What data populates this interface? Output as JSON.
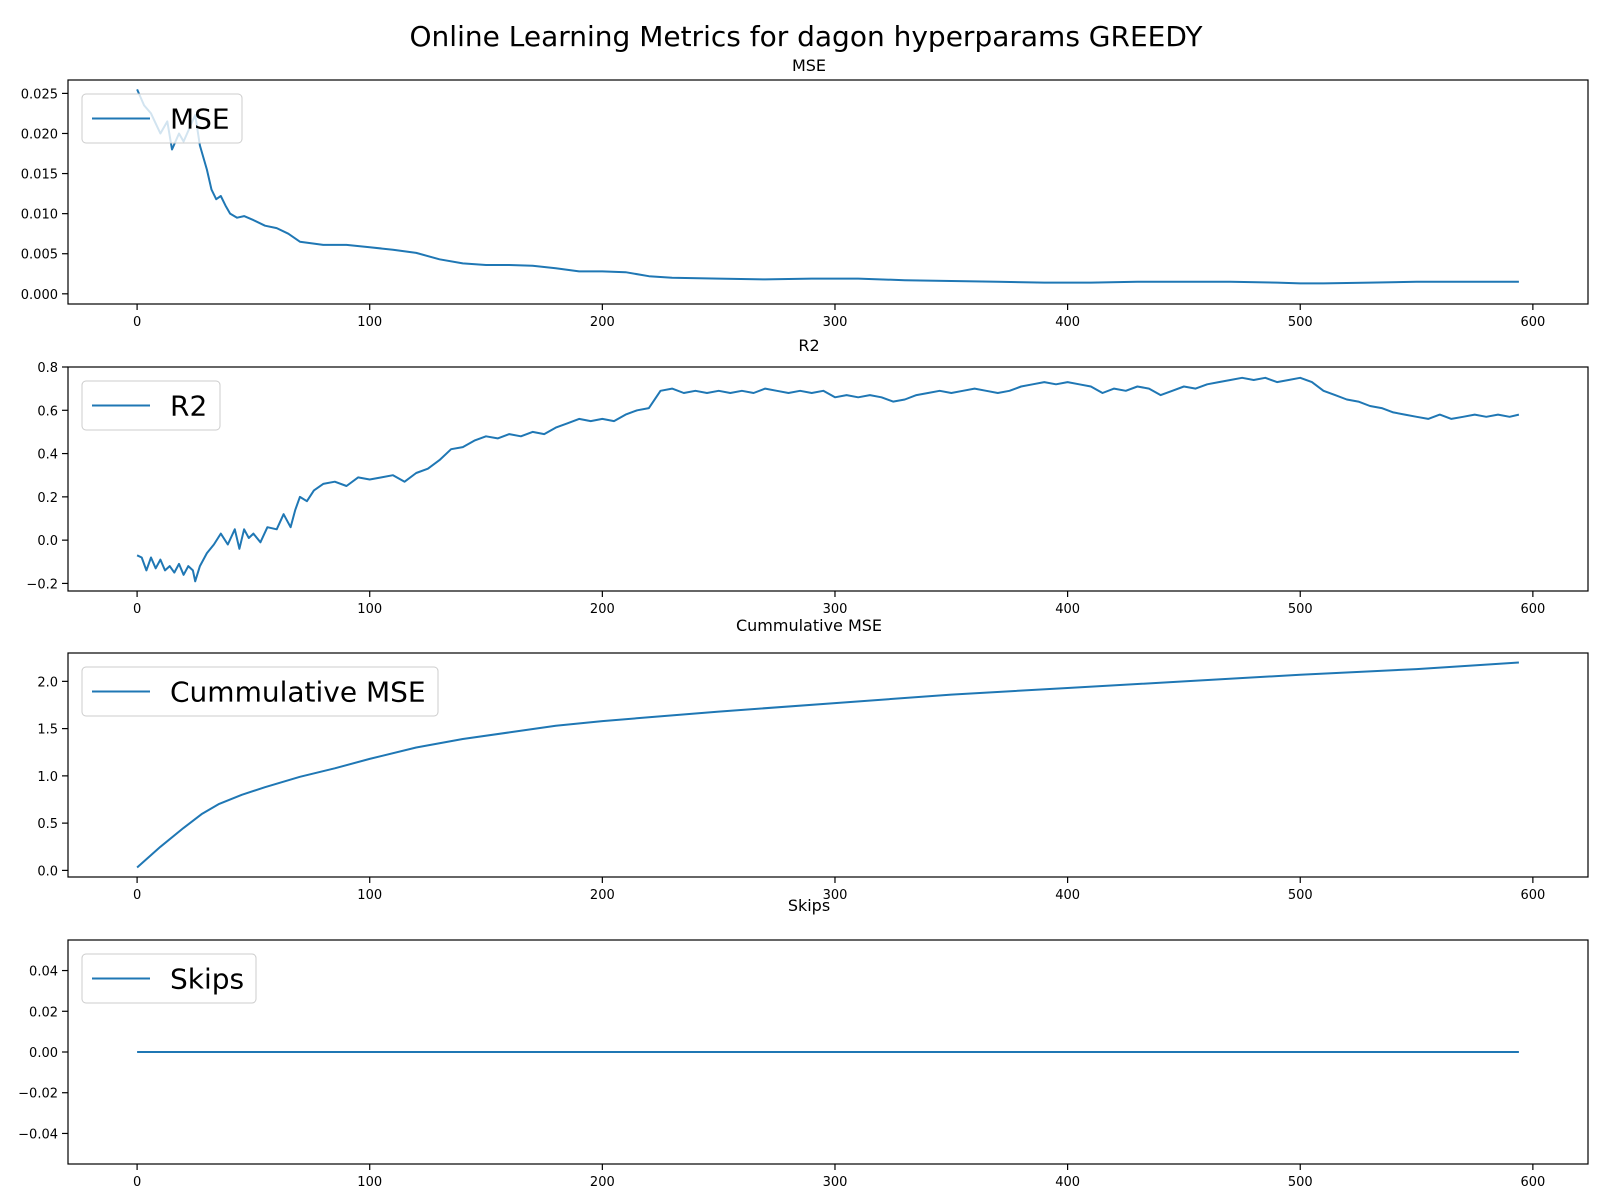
{
  "title": "Online Learning Metrics for dagon hyperparams GREEDY",
  "colors": {
    "line": "#1f77b4",
    "axes": "#000000",
    "legend_border": "#cccccc"
  },
  "chart_data": [
    {
      "type": "line",
      "title": "MSE",
      "xlim": [
        -29.7,
        623.7
      ],
      "ylim": [
        -0.00127,
        0.02667
      ],
      "xticks": [
        0,
        100,
        200,
        300,
        400,
        500,
        600
      ],
      "yticks": [
        0.0,
        0.005,
        0.01,
        0.015,
        0.02,
        0.025
      ],
      "ytick_labels": [
        "0.000",
        "0.005",
        "0.010",
        "0.015",
        "0.020",
        "0.025"
      ],
      "legend": "top-left",
      "series": [
        {
          "name": "MSE",
          "x": [
            0,
            3,
            6,
            10,
            13,
            15,
            18,
            20,
            23,
            25,
            27,
            30,
            32,
            34,
            36,
            38,
            40,
            43,
            46,
            50,
            55,
            60,
            65,
            70,
            80,
            90,
            100,
            110,
            120,
            130,
            140,
            150,
            160,
            170,
            180,
            190,
            200,
            210,
            220,
            230,
            250,
            270,
            290,
            310,
            330,
            350,
            370,
            390,
            410,
            430,
            450,
            470,
            490,
            500,
            510,
            530,
            550,
            570,
            594
          ],
          "y": [
            0.0255,
            0.0235,
            0.0225,
            0.02,
            0.0215,
            0.018,
            0.02,
            0.019,
            0.021,
            0.0223,
            0.0185,
            0.0155,
            0.013,
            0.0118,
            0.0122,
            0.011,
            0.01,
            0.0095,
            0.0097,
            0.0092,
            0.0085,
            0.0082,
            0.0075,
            0.0065,
            0.0061,
            0.0061,
            0.0058,
            0.0055,
            0.0051,
            0.0043,
            0.0038,
            0.0036,
            0.0036,
            0.0035,
            0.0032,
            0.0028,
            0.0028,
            0.0027,
            0.0022,
            0.002,
            0.0019,
            0.0018,
            0.0019,
            0.0019,
            0.0017,
            0.0016,
            0.0015,
            0.0014,
            0.0014,
            0.0015,
            0.0015,
            0.0015,
            0.0014,
            0.0013,
            0.0013,
            0.0014,
            0.0015,
            0.0015,
            0.0015
          ]
        }
      ]
    },
    {
      "type": "line",
      "title": "R2",
      "xlim": [
        -29.7,
        623.7
      ],
      "ylim": [
        -0.235,
        0.8
      ],
      "xticks": [
        0,
        100,
        200,
        300,
        400,
        500,
        600
      ],
      "yticks": [
        -0.2,
        0.0,
        0.2,
        0.4,
        0.6,
        0.8
      ],
      "ytick_labels": [
        "−0.2",
        "0.0",
        "0.2",
        "0.4",
        "0.6",
        "0.8"
      ],
      "legend": "top-left",
      "series": [
        {
          "name": "R2",
          "x": [
            0,
            2,
            4,
            6,
            8,
            10,
            12,
            14,
            16,
            18,
            20,
            22,
            24,
            25,
            27,
            30,
            33,
            36,
            39,
            42,
            44,
            46,
            48,
            50,
            53,
            56,
            60,
            63,
            66,
            68,
            70,
            73,
            76,
            80,
            85,
            90,
            95,
            100,
            105,
            110,
            115,
            120,
            125,
            130,
            135,
            140,
            145,
            150,
            155,
            160,
            165,
            170,
            175,
            180,
            185,
            190,
            195,
            200,
            205,
            210,
            215,
            220,
            225,
            230,
            235,
            240,
            245,
            250,
            255,
            260,
            265,
            270,
            275,
            280,
            285,
            290,
            295,
            300,
            305,
            310,
            315,
            320,
            325,
            330,
            335,
            340,
            345,
            350,
            355,
            360,
            365,
            370,
            375,
            380,
            385,
            390,
            395,
            400,
            405,
            410,
            415,
            420,
            425,
            430,
            435,
            440,
            445,
            450,
            455,
            460,
            465,
            470,
            475,
            480,
            485,
            490,
            495,
            500,
            505,
            510,
            515,
            520,
            525,
            530,
            535,
            540,
            545,
            550,
            555,
            560,
            565,
            570,
            575,
            580,
            585,
            590,
            594
          ],
          "y": [
            -0.07,
            -0.08,
            -0.14,
            -0.08,
            -0.13,
            -0.09,
            -0.14,
            -0.12,
            -0.15,
            -0.11,
            -0.16,
            -0.12,
            -0.14,
            -0.19,
            -0.12,
            -0.06,
            -0.02,
            0.03,
            -0.02,
            0.05,
            -0.04,
            0.05,
            0.01,
            0.03,
            -0.01,
            0.06,
            0.05,
            0.12,
            0.06,
            0.14,
            0.2,
            0.18,
            0.23,
            0.26,
            0.27,
            0.25,
            0.29,
            0.28,
            0.29,
            0.3,
            0.27,
            0.31,
            0.33,
            0.37,
            0.42,
            0.43,
            0.46,
            0.48,
            0.47,
            0.49,
            0.48,
            0.5,
            0.49,
            0.52,
            0.54,
            0.56,
            0.55,
            0.56,
            0.55,
            0.58,
            0.6,
            0.61,
            0.69,
            0.7,
            0.68,
            0.69,
            0.68,
            0.69,
            0.68,
            0.69,
            0.68,
            0.7,
            0.69,
            0.68,
            0.69,
            0.68,
            0.69,
            0.66,
            0.67,
            0.66,
            0.67,
            0.66,
            0.64,
            0.65,
            0.67,
            0.68,
            0.69,
            0.68,
            0.69,
            0.7,
            0.69,
            0.68,
            0.69,
            0.71,
            0.72,
            0.73,
            0.72,
            0.73,
            0.72,
            0.71,
            0.68,
            0.7,
            0.69,
            0.71,
            0.7,
            0.67,
            0.69,
            0.71,
            0.7,
            0.72,
            0.73,
            0.74,
            0.75,
            0.74,
            0.75,
            0.73,
            0.74,
            0.75,
            0.73,
            0.69,
            0.67,
            0.65,
            0.64,
            0.62,
            0.61,
            0.59,
            0.58,
            0.57,
            0.56,
            0.58,
            0.56,
            0.57,
            0.58,
            0.57,
            0.58,
            0.57,
            0.58
          ]
        }
      ]
    },
    {
      "type": "line",
      "title": "Cummulative MSE",
      "xlim": [
        -29.7,
        623.7
      ],
      "ylim": [
        -0.07,
        2.3
      ],
      "xticks": [
        0,
        100,
        200,
        300,
        400,
        500,
        600
      ],
      "yticks": [
        0.0,
        0.5,
        1.0,
        1.5,
        2.0
      ],
      "ytick_labels": [
        "0.0",
        "0.5",
        "1.0",
        "1.5",
        "2.0"
      ],
      "legend": "top-left",
      "series": [
        {
          "name": "Cummulative MSE",
          "x": [
            0,
            10,
            20,
            28,
            35,
            45,
            55,
            70,
            85,
            100,
            120,
            140,
            160,
            180,
            200,
            220,
            250,
            300,
            350,
            400,
            450,
            500,
            550,
            594
          ],
          "y": [
            0.03,
            0.25,
            0.45,
            0.6,
            0.7,
            0.8,
            0.88,
            0.99,
            1.08,
            1.18,
            1.3,
            1.39,
            1.46,
            1.53,
            1.58,
            1.62,
            1.68,
            1.77,
            1.86,
            1.93,
            2.0,
            2.07,
            2.13,
            2.2
          ]
        }
      ]
    },
    {
      "type": "line",
      "title": "Skips",
      "xlim": [
        -29.7,
        623.7
      ],
      "ylim": [
        -0.055,
        0.055
      ],
      "xticks": [
        0,
        100,
        200,
        300,
        400,
        500,
        600
      ],
      "yticks": [
        -0.04,
        -0.02,
        0.0,
        0.02,
        0.04
      ],
      "ytick_labels": [
        "−0.04",
        "−0.02",
        "0.00",
        "0.02",
        "0.04"
      ],
      "legend": "top-left",
      "series": [
        {
          "name": "Skips",
          "x": [
            0,
            594
          ],
          "y": [
            0,
            0
          ]
        }
      ]
    }
  ]
}
